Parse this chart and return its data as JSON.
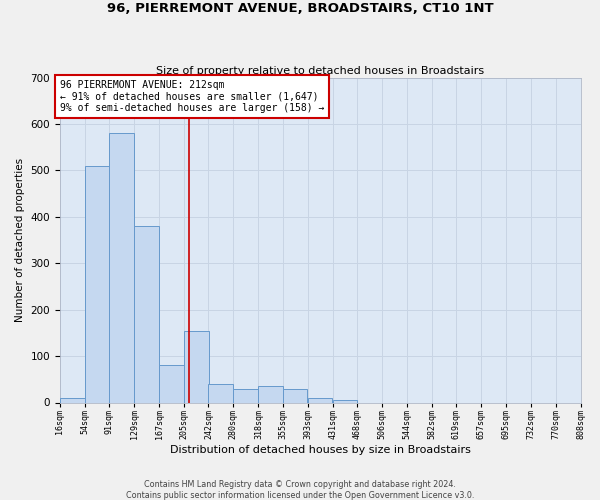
{
  "title": "96, PIERREMONT AVENUE, BROADSTAIRS, CT10 1NT",
  "subtitle": "Size of property relative to detached houses in Broadstairs",
  "xlabel": "Distribution of detached houses by size in Broadstairs",
  "ylabel": "Number of detached properties",
  "footer_line1": "Contains HM Land Registry data © Crown copyright and database right 2024.",
  "footer_line2": "Contains public sector information licensed under the Open Government Licence v3.0.",
  "bin_edges": [
    16,
    54,
    91,
    129,
    167,
    205,
    242,
    280,
    318,
    355,
    393,
    431,
    468,
    506,
    544,
    582,
    619,
    657,
    695,
    732,
    770
  ],
  "bar_heights": [
    10,
    510,
    580,
    380,
    80,
    155,
    40,
    30,
    35,
    30,
    10,
    5,
    0,
    0,
    0,
    0,
    0,
    0,
    0,
    0
  ],
  "bar_color": "#c5d8f0",
  "bar_edge_color": "#6699cc",
  "property_line_x": 212,
  "annotation_text_line1": "96 PIERREMONT AVENUE: 212sqm",
  "annotation_text_line2": "← 91% of detached houses are smaller (1,647)",
  "annotation_text_line3": "9% of semi-detached houses are larger (158) →",
  "annotation_box_facecolor": "#ffffff",
  "annotation_box_edgecolor": "#cc0000",
  "red_line_color": "#cc0000",
  "grid_color": "#c8d4e4",
  "bg_color": "#dde8f5",
  "fig_bg_color": "#f0f0f0",
  "ylim": [
    0,
    700
  ],
  "yticks": [
    0,
    100,
    200,
    300,
    400,
    500,
    600,
    700
  ],
  "title_fontsize": 9.5,
  "subtitle_fontsize": 8,
  "xlabel_fontsize": 8,
  "ylabel_fontsize": 7.5,
  "xtick_fontsize": 6,
  "ytick_fontsize": 7.5,
  "annotation_fontsize": 7,
  "footer_fontsize": 5.8
}
